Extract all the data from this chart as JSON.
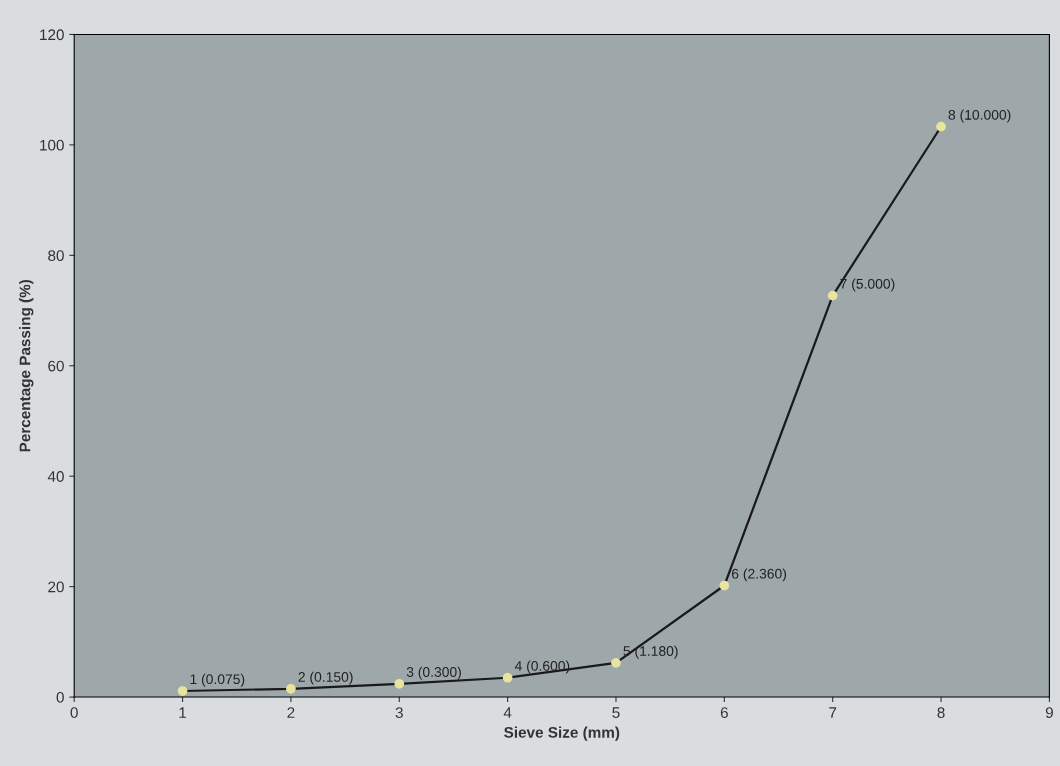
{
  "chart_data": {
    "type": "line",
    "xlabel": "Sieve Size (mm)",
    "ylabel": "Percentage Passing (%)",
    "x": [
      1,
      2,
      3,
      4,
      5,
      6,
      7,
      8
    ],
    "series": [
      {
        "color": "#1a1a1a",
        "values": [
          1.1,
          1.5,
          2.4,
          3.5,
          6.2,
          20.2,
          72.7,
          103.3
        ]
      }
    ],
    "xlim": [
      0,
      9
    ],
    "xticks": [
      0,
      1,
      2,
      3,
      4,
      5,
      6,
      7,
      8,
      9
    ],
    "ylim": [
      0,
      120
    ],
    "yticks": [
      0,
      20,
      40,
      60,
      80,
      100,
      120
    ],
    "grid": false,
    "legend": false,
    "marker": "circle",
    "line_style": "solid",
    "annotations": [
      {
        "text": "1 (0.075)",
        "x": 1,
        "y": 1.1
      },
      {
        "text": "2 (0.150)",
        "x": 2,
        "y": 1.5
      },
      {
        "text": "3 (0.300)",
        "x": 3,
        "y": 2.4
      },
      {
        "text": "4 (0.600)",
        "x": 4,
        "y": 3.5
      },
      {
        "text": "5 (1.180)",
        "x": 5,
        "y": 6.2
      },
      {
        "text": "6 (2.360)",
        "x": 6,
        "y": 20.2
      },
      {
        "text": "7 (5.000)",
        "x": 7,
        "y": 72.7
      },
      {
        "text": "8 (10.000)",
        "x": 8,
        "y": 103.3
      }
    ]
  }
}
